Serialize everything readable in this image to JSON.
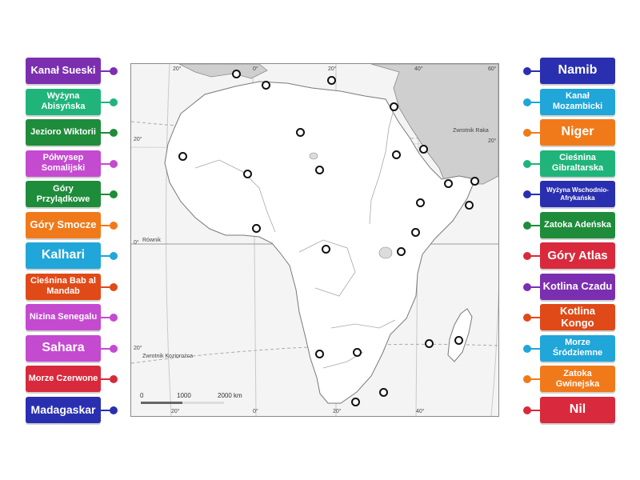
{
  "left_labels": [
    {
      "text": "Kanał Sueski",
      "color": "#7b2fb0",
      "size": "13px"
    },
    {
      "text": "Wyżyna Abisyńska",
      "color": "#20b47b",
      "size": "11px"
    },
    {
      "text": "Jezioro Wiktorii",
      "color": "#1e8c3a",
      "size": "11px"
    },
    {
      "text": "Półwysep Somalijski",
      "color": "#c44ad0",
      "size": "11px"
    },
    {
      "text": "Góry Przylądkowe",
      "color": "#1e8c3a",
      "size": "11px"
    },
    {
      "text": "Góry Smocze",
      "color": "#f07a1a",
      "size": "13px"
    },
    {
      "text": "Kalhari",
      "color": "#20a6d8",
      "size": "16px"
    },
    {
      "text": "Cieśnina Bab al Mandab",
      "color": "#e04a18",
      "size": "11px"
    },
    {
      "text": "Nizina Senegalu",
      "color": "#c44ad0",
      "size": "11px"
    },
    {
      "text": "Sahara",
      "color": "#c44ad0",
      "size": "16px"
    },
    {
      "text": "Morze Czerwone",
      "color": "#d82a3c",
      "size": "11px"
    },
    {
      "text": "Madagaskar",
      "color": "#2a2fb0",
      "size": "14px"
    }
  ],
  "right_labels": [
    {
      "text": "Namib",
      "color": "#2a2fb0",
      "size": "16px"
    },
    {
      "text": "Kanał Mozambicki",
      "color": "#20a6d8",
      "size": "11px"
    },
    {
      "text": "Niger",
      "color": "#f07a1a",
      "size": "16px"
    },
    {
      "text": "Cieśnina Gibraltarska",
      "color": "#20b47b",
      "size": "11px"
    },
    {
      "text": "Wyżyna Wschodnio-Afrykańska",
      "color": "#2a2fb0",
      "size": "8px"
    },
    {
      "text": "Zatoka Adeńska",
      "color": "#1e8c3a",
      "size": "11px"
    },
    {
      "text": "Góry Atlas",
      "color": "#d82a3c",
      "size": "15px"
    },
    {
      "text": "Kotlina Czadu",
      "color": "#7b2fb0",
      "size": "13px"
    },
    {
      "text": "Kotlina Kongo",
      "color": "#e04a18",
      "size": "13px"
    },
    {
      "text": "Morze Śródziemne",
      "color": "#20a6d8",
      "size": "11px"
    },
    {
      "text": "Zatoka Gwinejska",
      "color": "#f07a1a",
      "size": "11px"
    },
    {
      "text": "Nil",
      "color": "#d82a3c",
      "size": "16px"
    }
  ],
  "map": {
    "label_tropic_cancer": "Zwrotnik Raka",
    "label_equator": "Równik",
    "label_tropic_capricorn": "Zwrotnik Koziorożca",
    "lon_top": [
      "20°",
      "0°",
      "20°",
      "40°",
      "60°"
    ],
    "lon_bottom": [
      "20°",
      "0°",
      "20°",
      "40°"
    ],
    "lat_left": [
      "20°",
      "0°",
      "20°"
    ],
    "lat_right": [
      "20°"
    ],
    "scale": [
      "0",
      "1000",
      "2000 km"
    ]
  }
}
